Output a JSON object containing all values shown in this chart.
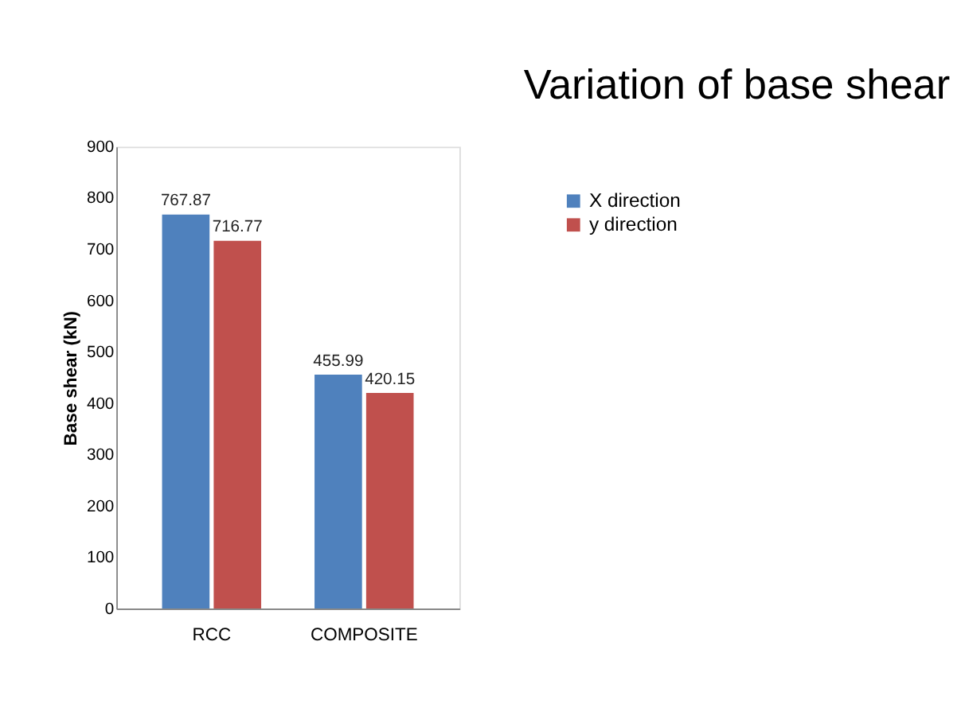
{
  "chart_data": {
    "type": "bar",
    "title": "Variation of base shear",
    "ylabel": "Base shear (kN)",
    "categories": [
      "RCC",
      "COMPOSITE"
    ],
    "series": [
      {
        "name": "X direction",
        "color": "#4f81bd",
        "values": [
          767.87,
          455.99
        ]
      },
      {
        "name": "y direction",
        "color": "#c0504d",
        "values": [
          716.77,
          420.15
        ]
      }
    ],
    "ylim": [
      0,
      900
    ],
    "yticks": [
      0,
      100,
      200,
      300,
      400,
      500,
      600,
      700,
      800,
      900
    ],
    "grid": false,
    "legend": "top right",
    "data_labels": true
  }
}
